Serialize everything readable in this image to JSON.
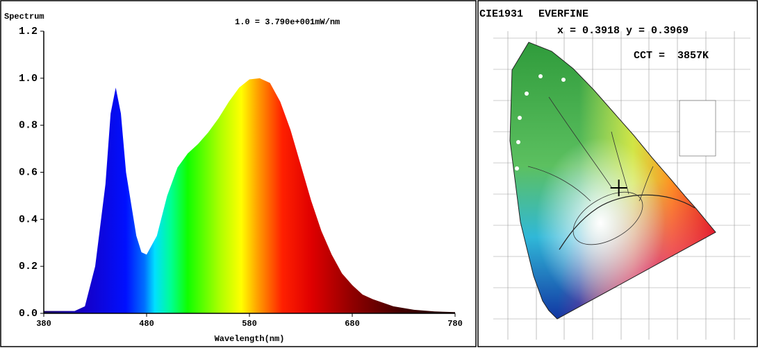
{
  "chart_data": [
    {
      "type": "area",
      "ylabel": "Spectrum",
      "annotation": "1.0 = 3.790e+001mW/nm",
      "xlabel": "Wavelength(nm)",
      "x": [
        380,
        390,
        400,
        410,
        420,
        430,
        440,
        445,
        450,
        455,
        460,
        470,
        475,
        480,
        490,
        500,
        510,
        520,
        530,
        540,
        550,
        560,
        570,
        580,
        590,
        600,
        610,
        620,
        630,
        640,
        650,
        660,
        670,
        680,
        690,
        700,
        720,
        740,
        760,
        780
      ],
      "values": [
        0.01,
        0.01,
        0.01,
        0.01,
        0.03,
        0.2,
        0.55,
        0.85,
        0.96,
        0.85,
        0.6,
        0.33,
        0.26,
        0.25,
        0.33,
        0.5,
        0.62,
        0.68,
        0.72,
        0.77,
        0.83,
        0.9,
        0.96,
        0.995,
        1.0,
        0.98,
        0.9,
        0.78,
        0.63,
        0.48,
        0.35,
        0.25,
        0.17,
        0.12,
        0.08,
        0.06,
        0.03,
        0.015,
        0.008,
        0.005
      ],
      "xlim": [
        380,
        780
      ],
      "xticks": [
        380,
        480,
        580,
        680,
        780
      ],
      "ylim": [
        0,
        1.2
      ],
      "yticks": [
        {
          "value": 0,
          "label": "0.0"
        },
        0.2,
        0.4,
        0.6,
        0.8,
        {
          "value": 1,
          "label": "1.0"
        },
        1.2
      ]
    },
    {
      "type": "chromaticity",
      "title": "CIE1931",
      "brand": "EVERFINE",
      "x_name": "x =",
      "x": 0.3918,
      "y_name": "y =",
      "y": 0.3969,
      "cct_name": "CCT =",
      "cct": 3857,
      "cct_unit": "K",
      "xlim": [
        0,
        0.8
      ],
      "ylim": [
        0,
        0.9
      ]
    }
  ]
}
